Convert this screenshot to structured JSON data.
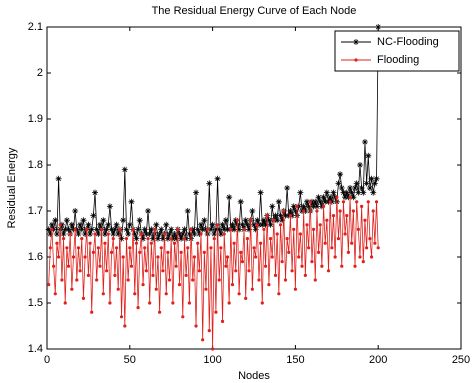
{
  "chart_data": {
    "type": "line",
    "title": "The Residual Energy Curve of Each Node",
    "xlabel": "Nodes",
    "ylabel": "Residual Energy",
    "xlim": [
      0,
      250
    ],
    "xticks": [
      0,
      50,
      100,
      150,
      200,
      250
    ],
    "ylim": [
      1.4,
      2.1
    ],
    "yticks": [
      1.4,
      1.5,
      1.6,
      1.7,
      1.8,
      1.9,
      2,
      2.1
    ],
    "legend": "upper right",
    "x": [
      1,
      2,
      3,
      4,
      5,
      6,
      7,
      8,
      9,
      10,
      11,
      12,
      13,
      14,
      15,
      16,
      17,
      18,
      19,
      20,
      21,
      22,
      23,
      24,
      25,
      26,
      27,
      28,
      29,
      30,
      31,
      32,
      33,
      34,
      35,
      36,
      37,
      38,
      39,
      40,
      41,
      42,
      43,
      44,
      45,
      46,
      47,
      48,
      49,
      50,
      51,
      52,
      53,
      54,
      55,
      56,
      57,
      58,
      59,
      60,
      61,
      62,
      63,
      64,
      65,
      66,
      67,
      68,
      69,
      70,
      71,
      72,
      73,
      74,
      75,
      76,
      77,
      78,
      79,
      80,
      81,
      82,
      83,
      84,
      85,
      86,
      87,
      88,
      89,
      90,
      91,
      92,
      93,
      94,
      95,
      96,
      97,
      98,
      99,
      100,
      101,
      102,
      103,
      104,
      105,
      106,
      107,
      108,
      109,
      110,
      111,
      112,
      113,
      114,
      115,
      116,
      117,
      118,
      119,
      120,
      121,
      122,
      123,
      124,
      125,
      126,
      127,
      128,
      129,
      130,
      131,
      132,
      133,
      134,
      135,
      136,
      137,
      138,
      139,
      140,
      141,
      142,
      143,
      144,
      145,
      146,
      147,
      148,
      149,
      150,
      151,
      152,
      153,
      154,
      155,
      156,
      157,
      158,
      159,
      160,
      161,
      162,
      163,
      164,
      165,
      166,
      167,
      168,
      169,
      170,
      171,
      172,
      173,
      174,
      175,
      176,
      177,
      178,
      179,
      180,
      181,
      182,
      183,
      184,
      185,
      186,
      187,
      188,
      189,
      190,
      191,
      192,
      193,
      194,
      195,
      196,
      197,
      198,
      199,
      200
    ],
    "series": [
      {
        "name": "NC-Flooding",
        "color": "#000000",
        "marker": "star",
        "values": [
          1.66,
          1.65,
          1.67,
          1.66,
          1.68,
          1.65,
          1.77,
          1.66,
          1.67,
          1.65,
          1.66,
          1.68,
          1.66,
          1.65,
          1.67,
          1.66,
          1.7,
          1.66,
          1.65,
          1.67,
          1.66,
          1.68,
          1.65,
          1.66,
          1.67,
          1.65,
          1.66,
          1.69,
          1.74,
          1.66,
          1.65,
          1.67,
          1.66,
          1.68,
          1.65,
          1.66,
          1.67,
          1.71,
          1.66,
          1.65,
          1.66,
          1.67,
          1.65,
          1.66,
          1.64,
          1.68,
          1.79,
          1.66,
          1.65,
          1.67,
          1.72,
          1.66,
          1.65,
          1.64,
          1.66,
          1.68,
          1.65,
          1.64,
          1.66,
          1.65,
          1.7,
          1.65,
          1.66,
          1.64,
          1.65,
          1.67,
          1.64,
          1.65,
          1.66,
          1.64,
          1.65,
          1.67,
          1.64,
          1.65,
          1.66,
          1.64,
          1.65,
          1.64,
          1.66,
          1.65,
          1.64,
          1.65,
          1.66,
          1.64,
          1.7,
          1.65,
          1.64,
          1.66,
          1.65,
          1.74,
          1.66,
          1.65,
          1.67,
          1.66,
          1.68,
          1.66,
          1.65,
          1.76,
          1.66,
          1.67,
          1.65,
          1.66,
          1.77,
          1.66,
          1.65,
          1.67,
          1.66,
          1.68,
          1.66,
          1.73,
          1.66,
          1.67,
          1.66,
          1.68,
          1.67,
          1.66,
          1.72,
          1.67,
          1.66,
          1.68,
          1.67,
          1.66,
          1.68,
          1.7,
          1.67,
          1.66,
          1.68,
          1.67,
          1.74,
          1.67,
          1.68,
          1.67,
          1.69,
          1.68,
          1.67,
          1.71,
          1.68,
          1.69,
          1.68,
          1.72,
          1.69,
          1.68,
          1.7,
          1.69,
          1.75,
          1.69,
          1.7,
          1.69,
          1.71,
          1.7,
          1.69,
          1.71,
          1.74,
          1.7,
          1.71,
          1.7,
          1.72,
          1.71,
          1.7,
          1.72,
          1.71,
          1.72,
          1.71,
          1.73,
          1.72,
          1.71,
          1.73,
          1.72,
          1.74,
          1.72,
          1.73,
          1.72,
          1.74,
          1.73,
          1.72,
          1.76,
          1.78,
          1.75,
          1.74,
          1.73,
          1.74,
          1.73,
          1.75,
          1.74,
          1.73,
          1.75,
          1.76,
          1.74,
          1.8,
          1.75,
          1.74,
          1.85,
          1.76,
          1.82,
          1.75,
          1.77,
          1.74,
          1.76,
          1.77,
          2.1
        ]
      },
      {
        "name": "Flooding",
        "color": "#e0201b",
        "marker": "dot",
        "values": [
          1.54,
          1.62,
          1.66,
          1.58,
          1.52,
          1.63,
          1.6,
          1.67,
          1.55,
          1.64,
          1.5,
          1.62,
          1.58,
          1.65,
          1.53,
          1.6,
          1.66,
          1.55,
          1.62,
          1.57,
          1.64,
          1.51,
          1.6,
          1.66,
          1.56,
          1.63,
          1.48,
          1.61,
          1.65,
          1.55,
          1.62,
          1.58,
          1.66,
          1.52,
          1.63,
          1.57,
          1.65,
          1.5,
          1.61,
          1.64,
          1.56,
          1.62,
          1.53,
          1.66,
          1.47,
          1.6,
          1.45,
          1.64,
          1.55,
          1.62,
          1.58,
          1.66,
          1.52,
          1.63,
          1.49,
          1.61,
          1.65,
          1.54,
          1.62,
          1.57,
          1.64,
          1.5,
          1.63,
          1.56,
          1.66,
          1.53,
          1.6,
          1.48,
          1.62,
          1.57,
          1.65,
          1.52,
          1.61,
          1.55,
          1.64,
          1.5,
          1.63,
          1.58,
          1.66,
          1.54,
          1.61,
          1.47,
          1.64,
          1.56,
          1.62,
          1.5,
          1.66,
          1.55,
          1.6,
          1.45,
          1.63,
          1.57,
          1.65,
          1.42,
          1.61,
          1.53,
          1.66,
          1.44,
          1.62,
          1.4,
          1.64,
          1.48,
          1.67,
          1.55,
          1.62,
          1.46,
          1.65,
          1.58,
          1.6,
          1.5,
          1.66,
          1.54,
          1.63,
          1.57,
          1.68,
          1.52,
          1.61,
          1.59,
          1.66,
          1.51,
          1.64,
          1.57,
          1.68,
          1.53,
          1.62,
          1.6,
          1.67,
          1.55,
          1.63,
          1.5,
          1.66,
          1.58,
          1.69,
          1.54,
          1.64,
          1.6,
          1.68,
          1.56,
          1.65,
          1.52,
          1.67,
          1.59,
          1.7,
          1.55,
          1.64,
          1.61,
          1.69,
          1.57,
          1.66,
          1.53,
          1.71,
          1.6,
          1.65,
          1.58,
          1.7,
          1.56,
          1.67,
          1.62,
          1.72,
          1.59,
          1.66,
          1.55,
          1.7,
          1.61,
          1.67,
          1.58,
          1.71,
          1.63,
          1.68,
          1.57,
          1.72,
          1.62,
          1.69,
          1.6,
          1.73,
          1.64,
          1.7,
          1.58,
          1.72,
          1.65,
          1.69,
          1.61,
          1.73,
          1.63,
          1.7,
          1.58,
          1.72,
          1.66,
          1.6,
          1.71,
          1.59,
          1.68,
          1.62,
          1.72,
          1.64,
          1.6,
          1.7,
          1.63,
          1.72,
          1.62
        ]
      }
    ]
  }
}
